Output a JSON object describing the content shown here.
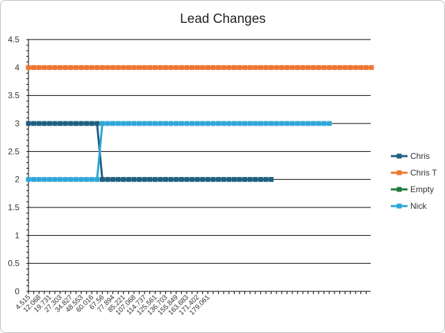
{
  "chart_data": {
    "type": "line",
    "title": "Lead Changes",
    "xlabel": "",
    "ylabel": "",
    "ylim": [
      0,
      4.5
    ],
    "yticks": [
      "0",
      "0.5",
      "1",
      "1.5",
      "2",
      "2.5",
      "3",
      "3.5",
      "4",
      "4.5"
    ],
    "x_tick_labels": [
      "4.515",
      "12.068",
      "19.731",
      "27.303",
      "34.827",
      "48.553",
      "60.016",
      "67.56",
      "77.894",
      "85.221",
      "107.068",
      "114.737",
      "125.561",
      "136.703",
      "155.849",
      "163.683",
      "171.402",
      "179.061"
    ],
    "grid": true,
    "legend_position": "right",
    "series": [
      {
        "name": "Chris",
        "color": "#1f5f80",
        "values": [
          3,
          3,
          3,
          3,
          3,
          3,
          3,
          3,
          3,
          3,
          3,
          3,
          3,
          3,
          2,
          2,
          2,
          2,
          2,
          2,
          2,
          2,
          2,
          2,
          2,
          2,
          2,
          2,
          2,
          2,
          2,
          2,
          2,
          2,
          2,
          2,
          2,
          2,
          2,
          2,
          2,
          2,
          2,
          2,
          2,
          2,
          2
        ]
      },
      {
        "name": "Chris T",
        "color": "#ed7633",
        "values": [
          4,
          4,
          4,
          4,
          4,
          4,
          4,
          4,
          4,
          4,
          4,
          4,
          4,
          4,
          4,
          4,
          4,
          4,
          4,
          4,
          4,
          4,
          4,
          4,
          4,
          4,
          4,
          4,
          4,
          4,
          4,
          4,
          4,
          4,
          4,
          4,
          4,
          4,
          4,
          4,
          4,
          4,
          4,
          4,
          4,
          4,
          4,
          4,
          4,
          4,
          4,
          4,
          4,
          4,
          4,
          4,
          4,
          4,
          4,
          4,
          4,
          4,
          4,
          4,
          4,
          4
        ]
      },
      {
        "name": "Empty",
        "color": "#1e7a3a",
        "values": []
      },
      {
        "name": "Nick",
        "color": "#2ea6d8",
        "values": [
          2,
          2,
          2,
          2,
          2,
          2,
          2,
          2,
          2,
          2,
          2,
          2,
          2,
          2,
          3,
          3,
          3,
          3,
          3,
          3,
          3,
          3,
          3,
          3,
          3,
          3,
          3,
          3,
          3,
          3,
          3,
          3,
          3,
          3,
          3,
          3,
          3,
          3,
          3,
          3,
          3,
          3,
          3,
          3,
          3,
          3,
          3,
          3,
          3,
          3,
          3,
          3,
          3,
          3,
          3,
          3,
          3,
          3
        ]
      }
    ]
  }
}
